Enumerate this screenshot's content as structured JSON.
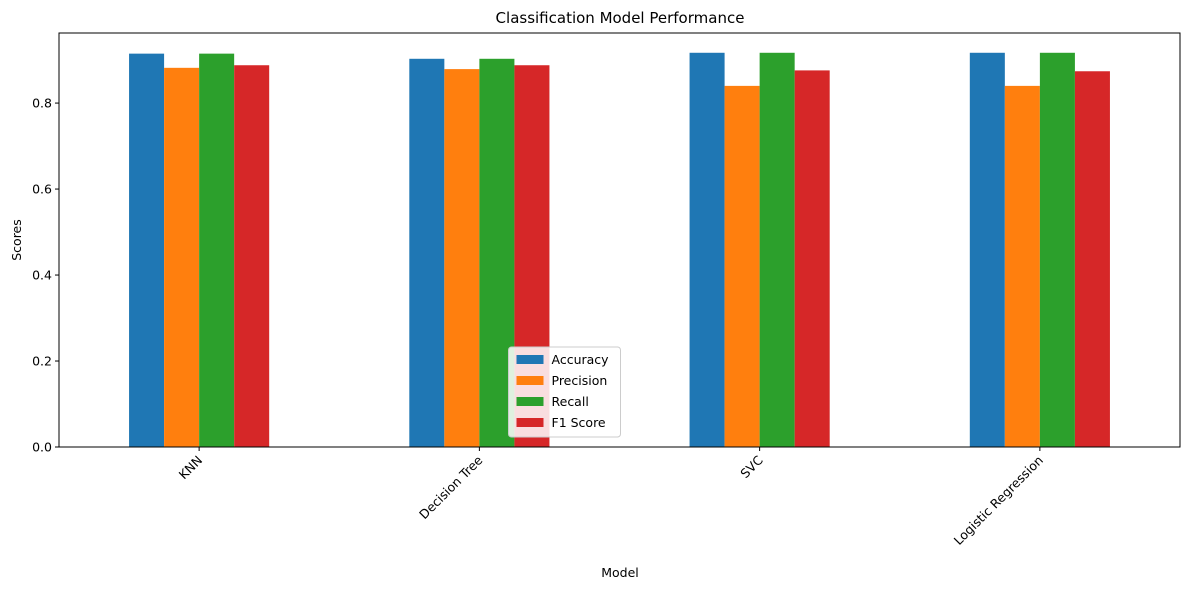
{
  "chart_data": {
    "type": "bar",
    "title": "Classification Model Performance",
    "xlabel": "Model",
    "ylabel": "Scores",
    "categories": [
      "KNN",
      "Decision Tree",
      "SVC",
      "Logistic Regression"
    ],
    "series": [
      {
        "name": "Accuracy",
        "color": "#1f77b4",
        "values": [
          0.915,
          0.903,
          0.917,
          0.917
        ]
      },
      {
        "name": "Precision",
        "color": "#ff7f0e",
        "values": [
          0.882,
          0.879,
          0.84,
          0.84
        ]
      },
      {
        "name": "Recall",
        "color": "#2ca02c",
        "values": [
          0.915,
          0.903,
          0.917,
          0.917
        ]
      },
      {
        "name": "F1 Score",
        "color": "#d62728",
        "values": [
          0.888,
          0.888,
          0.876,
          0.874
        ]
      }
    ],
    "ylim": [
      0,
      0.963
    ],
    "yticks": [
      0.0,
      0.2,
      0.4,
      0.6,
      0.8
    ],
    "ytick_labels": [
      "0.0",
      "0.2",
      "0.4",
      "0.6",
      "0.8"
    ],
    "grid": false,
    "legend_position": "bottom-center",
    "xtick_rotation": 45
  }
}
